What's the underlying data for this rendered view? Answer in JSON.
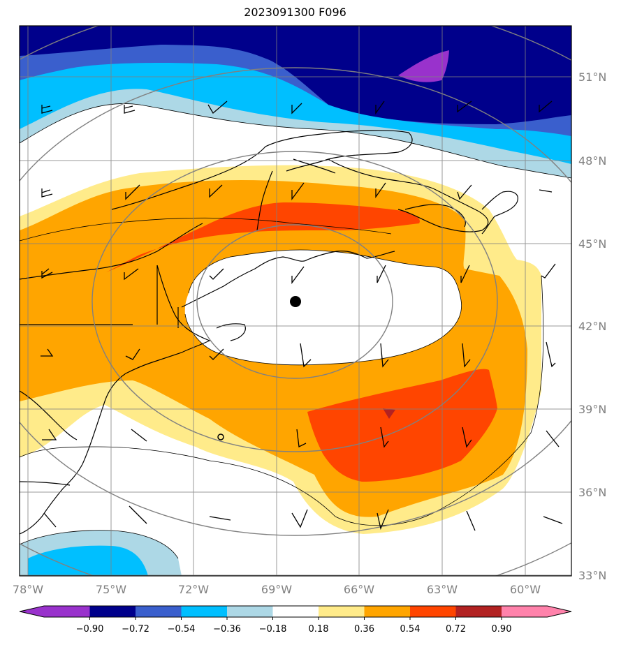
{
  "title": "2023091300 F096",
  "lon_labels": [
    "78°W",
    "75°W",
    "72°W",
    "69°W",
    "66°W",
    "63°W",
    "60°W"
  ],
  "lat_labels": [
    "51°N",
    "48°N",
    "45°N",
    "42°N",
    "39°N",
    "36°N",
    "33°N"
  ],
  "colorbar": {
    "ticks": [
      "−0.90",
      "−0.72",
      "−0.54",
      "−0.36",
      "−0.18",
      "0.18",
      "0.36",
      "0.54",
      "0.72",
      "0.90"
    ],
    "colors": [
      "#9932cc",
      "#00008b",
      "#3a5fcd",
      "#00bfff",
      "#add8e6",
      "#ffffff",
      "#ffeb8a",
      "#ffa500",
      "#ff4500",
      "#b22222",
      "#ff82ab"
    ]
  },
  "markers": [
    {
      "name": "center-dot",
      "lon": -68.3,
      "lat": 42.9
    },
    {
      "name": "small-circle",
      "lon": -71.0,
      "lat": 38.0
    }
  ]
}
